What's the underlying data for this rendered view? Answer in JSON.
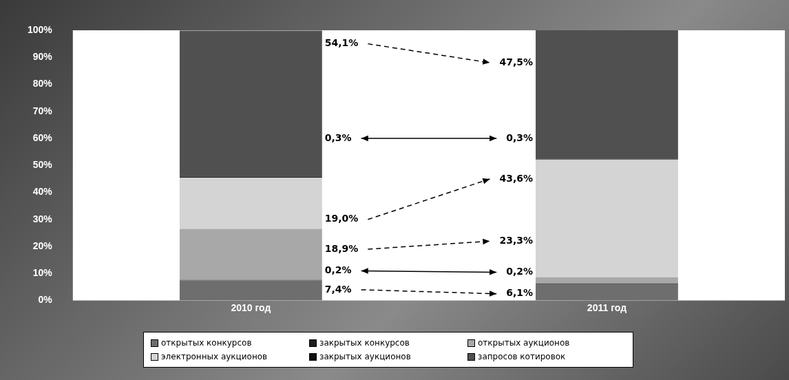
{
  "chart_data": {
    "type": "bar",
    "stacked": true,
    "categories": [
      "2010 год",
      "2011 год"
    ],
    "ylim": [
      0,
      100
    ],
    "yticks": [
      {
        "value": 0,
        "label": "0%"
      },
      {
        "value": 10,
        "label": "10%"
      },
      {
        "value": 20,
        "label": "20%"
      },
      {
        "value": 30,
        "label": "30%"
      },
      {
        "value": 40,
        "label": "40%"
      },
      {
        "value": 50,
        "label": "50%"
      },
      {
        "value": 60,
        "label": "60%"
      },
      {
        "value": 70,
        "label": "70%"
      },
      {
        "value": 80,
        "label": "80%"
      },
      {
        "value": 90,
        "label": "90%"
      },
      {
        "value": 100,
        "label": "100%"
      }
    ],
    "grid": false,
    "legend": "bottom",
    "annotations": [
      "7,4%",
      "6,1%",
      "0,2%",
      "0,2%",
      "18,9%",
      "23,3%",
      "19,0%",
      "43,6%",
      "0,3%",
      "0,3%",
      "54,1%",
      "47,5%"
    ],
    "series": [
      {
        "name": "открытых конкурсов",
        "color": "#6e6e6e",
        "values": [
          7.4,
          6.1
        ]
      },
      {
        "name": "закрытых конкурсов",
        "color": "#1e1e1e",
        "values": [
          0.2,
          0.2
        ]
      },
      {
        "name": "открытых аукционов",
        "color": "#a8a8a8",
        "values": [
          18.9,
          2.3
        ]
      },
      {
        "name": "электронных аукционов",
        "color": "#d4d4d4",
        "values": [
          19.0,
          43.6
        ]
      },
      {
        "name": "закрытых аукционов",
        "color": "#101010",
        "values": [
          0.3,
          0.3
        ]
      },
      {
        "name": "запросов котировок",
        "color": "#505050",
        "values": [
          54.1,
          47.5
        ]
      }
    ]
  }
}
